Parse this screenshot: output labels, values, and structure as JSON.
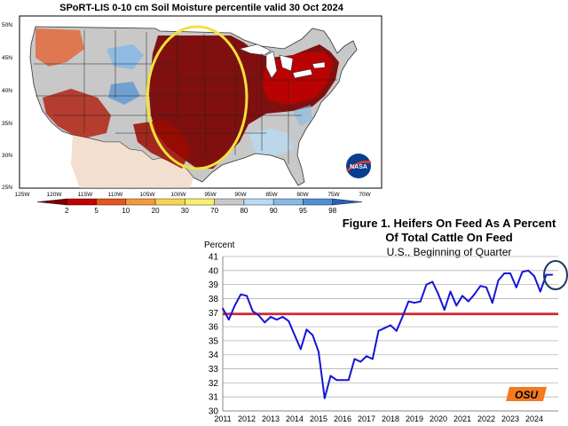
{
  "map": {
    "title": "SPoRT-LIS 0-10 cm Soil Moisture percentile valid 30 Oct 2024",
    "lat_labels": [
      "50N",
      "45N",
      "40N",
      "35N",
      "30N",
      "25N"
    ],
    "lon_labels": [
      "125W",
      "120W",
      "115W",
      "110W",
      "105W",
      "100W",
      "95W",
      "90W",
      "85W",
      "80W",
      "75W",
      "70W"
    ],
    "legend": {
      "labels": [
        "2",
        "5",
        "10",
        "20",
        "30",
        "70",
        "80",
        "90",
        "95",
        "98"
      ],
      "colors": [
        "#7a0000",
        "#c40000",
        "#e8541c",
        "#f29a3c",
        "#f7d44e",
        "#f7f06a",
        "#c8c8c8",
        "#b9daf2",
        "#86b9e6",
        "#4f8fd6",
        "#2c5fb8"
      ]
    },
    "annotation_color": "#f2e33a",
    "logo_text": "NASA"
  },
  "chart": {
    "title_line1": "Figure 1. Heifers On Feed As A Percent",
    "title_line2": "Of Total Cattle On Feed",
    "subtitle": "U.S., Beginning of Quarter",
    "logo_text": "OSU"
  },
  "chart_data": {
    "type": "line",
    "title": "Figure 1. Heifers On Feed As A Percent Of Total Cattle On Feed",
    "subtitle": "U.S., Beginning of Quarter",
    "ylabel": "Percent",
    "ylim": [
      30,
      41
    ],
    "yticks": [
      30,
      31,
      32,
      33,
      34,
      35,
      36,
      37,
      38,
      39,
      40,
      41
    ],
    "xticks": [
      "2011",
      "2012",
      "2013",
      "2014",
      "2015",
      "2016",
      "2017",
      "2018",
      "2019",
      "2020",
      "2021",
      "2022",
      "2023",
      "2024"
    ],
    "grid": true,
    "reference_line": {
      "value": 36.9,
      "color": "#e0202a"
    },
    "series": [
      {
        "color": "#1515d6",
        "x": [
          2011.0,
          2011.25,
          2011.5,
          2011.75,
          2012.0,
          2012.25,
          2012.5,
          2012.75,
          2013.0,
          2013.25,
          2013.5,
          2013.75,
          2014.0,
          2014.25,
          2014.5,
          2014.75,
          2015.0,
          2015.25,
          2015.5,
          2015.75,
          2016.0,
          2016.25,
          2016.5,
          2016.75,
          2017.0,
          2017.25,
          2017.5,
          2017.75,
          2018.0,
          2018.25,
          2018.5,
          2018.75,
          2019.0,
          2019.25,
          2019.5,
          2019.75,
          2020.0,
          2020.25,
          2020.5,
          2020.75,
          2021.0,
          2021.25,
          2021.5,
          2021.75,
          2022.0,
          2022.25,
          2022.5,
          2022.75,
          2023.0,
          2023.25,
          2023.5,
          2023.75,
          2024.0,
          2024.25,
          2024.5,
          2024.75
        ],
        "values": [
          37.3,
          36.5,
          37.5,
          38.3,
          38.2,
          37.1,
          36.8,
          36.3,
          36.7,
          36.5,
          36.7,
          36.4,
          35.4,
          34.4,
          35.8,
          35.4,
          34.2,
          30.9,
          32.5,
          32.2,
          32.2,
          32.2,
          33.7,
          33.5,
          33.9,
          33.7,
          35.7,
          35.9,
          36.1,
          35.7,
          36.7,
          37.8,
          37.7,
          37.8,
          39.0,
          39.2,
          38.3,
          37.2,
          38.5,
          37.5,
          38.2,
          37.8,
          38.3,
          38.9,
          38.8,
          37.7,
          39.3,
          39.8,
          39.8,
          38.8,
          39.9,
          40.0,
          39.6,
          38.5,
          39.7,
          39.7
        ]
      }
    ],
    "annotation": "circle around latest values"
  }
}
